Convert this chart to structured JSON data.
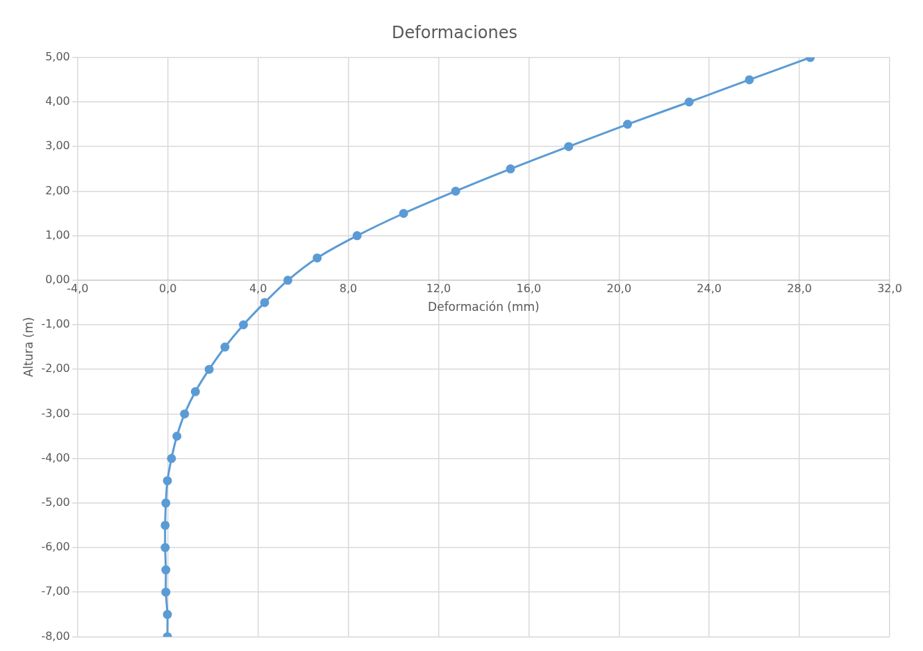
{
  "chart_data": {
    "type": "line",
    "title": "Deformaciones",
    "xlabel": "Deformación (mm)",
    "ylabel": "Altura (m)",
    "x": [
      28.48,
      25.78,
      23.11,
      20.38,
      17.77,
      15.19,
      12.76,
      10.45,
      8.39,
      6.62,
      5.32,
      4.29,
      3.35,
      2.53,
      1.83,
      1.22,
      0.74,
      0.4,
      0.16,
      -0.02,
      -0.09,
      -0.12,
      -0.12,
      -0.09,
      -0.09,
      -0.02,
      -0.02
    ],
    "series": [
      {
        "color": "#5b9bd5",
        "values": [
          5,
          4.5,
          4,
          3.5,
          3,
          2.5,
          2,
          1.5,
          1,
          0.5,
          0,
          -0.5,
          -1,
          -1.5,
          -2,
          -2.5,
          -3,
          -3.5,
          -4,
          -4.5,
          -5,
          -5.5,
          -6,
          -6.5,
          -7,
          -7.5,
          -8
        ]
      }
    ],
    "xlim": [
      -4,
      32
    ],
    "xticks": [
      {
        "value": -4,
        "label": "-4,0"
      },
      {
        "value": 0,
        "label": "0,0"
      },
      {
        "value": 4,
        "label": "4,0"
      },
      {
        "value": 8,
        "label": "8,0"
      },
      {
        "value": 12,
        "label": "12,0"
      },
      {
        "value": 16,
        "label": "16,0"
      },
      {
        "value": 20,
        "label": "20,0"
      },
      {
        "value": 24,
        "label": "24,0"
      },
      {
        "value": 28,
        "label": "28,0"
      },
      {
        "value": 32,
        "label": "32,0"
      }
    ],
    "ylim": [
      -8,
      5
    ],
    "yticks": [
      {
        "value": -8,
        "label": "-8,00"
      },
      {
        "value": -7,
        "label": "-7,00"
      },
      {
        "value": -6,
        "label": "-6,00"
      },
      {
        "value": -5,
        "label": "-5,00"
      },
      {
        "value": -4,
        "label": "-4,00"
      },
      {
        "value": -3,
        "label": "-3,00"
      },
      {
        "value": -2,
        "label": "-2,00"
      },
      {
        "value": -1,
        "label": "-1,00"
      },
      {
        "value": 0,
        "label": "0,00"
      },
      {
        "value": 1,
        "label": "1,00"
      },
      {
        "value": 2,
        "label": "2,00"
      },
      {
        "value": 3,
        "label": "3,00"
      },
      {
        "value": 4,
        "label": "4,00"
      },
      {
        "value": 5,
        "label": "5,00"
      }
    ],
    "grid": true,
    "marker": "circle",
    "line_style": "solid",
    "legend": false
  }
}
